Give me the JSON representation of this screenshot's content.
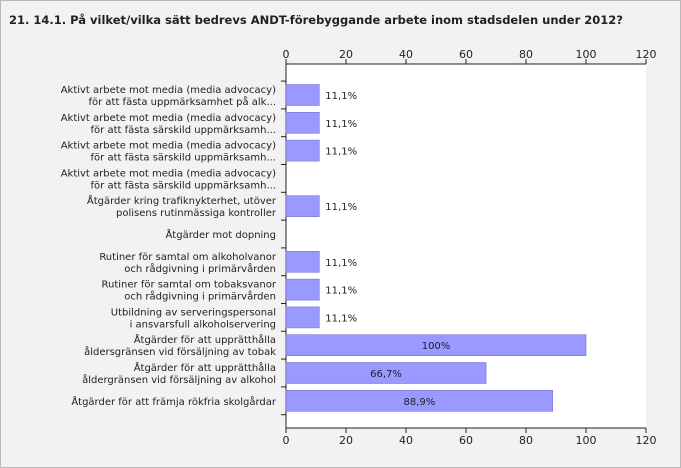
{
  "chart_data": {
    "type": "bar",
    "orientation": "horizontal",
    "title": "21. 14.1. På vilket/vilka sätt bedrevs ANDT-förebyggande arbete inom stadsdelen under 2012?",
    "xlim": [
      0,
      120
    ],
    "xticks": [
      0,
      20,
      40,
      60,
      80,
      100,
      120
    ],
    "grid": false,
    "bar_color": "#9999ff",
    "categories": [
      [
        "Aktivt arbete mot media (media advocacy)",
        "för att fästa uppmärksamhet på alk..."
      ],
      [
        "Aktivt arbete mot media (media advocacy)",
        "för att fästa särskild uppmärksamh..."
      ],
      [
        "Aktivt arbete mot media (media advocacy)",
        "för att fästa särskild uppmärksamh..."
      ],
      [
        "Aktivt arbete mot media (media advocacy)",
        "för att fästa särskild uppmärksamh..."
      ],
      [
        "Åtgärder kring trafiknykterhet, utöver",
        "polisens rutinmässiga kontroller"
      ],
      [
        "Åtgärder mot dopning"
      ],
      [
        "Rutiner för samtal om alkoholvanor",
        "och rådgivning i primärvården"
      ],
      [
        "Rutiner för samtal om tobaksvanor",
        "och rådgivning i primärvården"
      ],
      [
        "Utbildning av serveringspersonal",
        "i ansvarsfull alkoholservering"
      ],
      [
        "Åtgärder för att upprätthålla",
        "åldersgränsen vid försäljning av tobak"
      ],
      [
        "Åtgärder för att upprätthålla",
        "åldergränsen vid försäljning av alkohol"
      ],
      [
        "Åtgärder för att främja rökfria skolgårdar"
      ]
    ],
    "values": [
      11.1,
      11.1,
      11.1,
      0,
      11.1,
      0,
      11.1,
      11.1,
      11.1,
      100,
      66.7,
      88.9
    ],
    "labels": [
      "11,1%",
      "11,1%",
      "11,1%",
      "",
      "11,1%",
      "",
      "11,1%",
      "11,1%",
      "11,1%",
      "100%",
      "66,7%",
      "88,9%"
    ]
  }
}
